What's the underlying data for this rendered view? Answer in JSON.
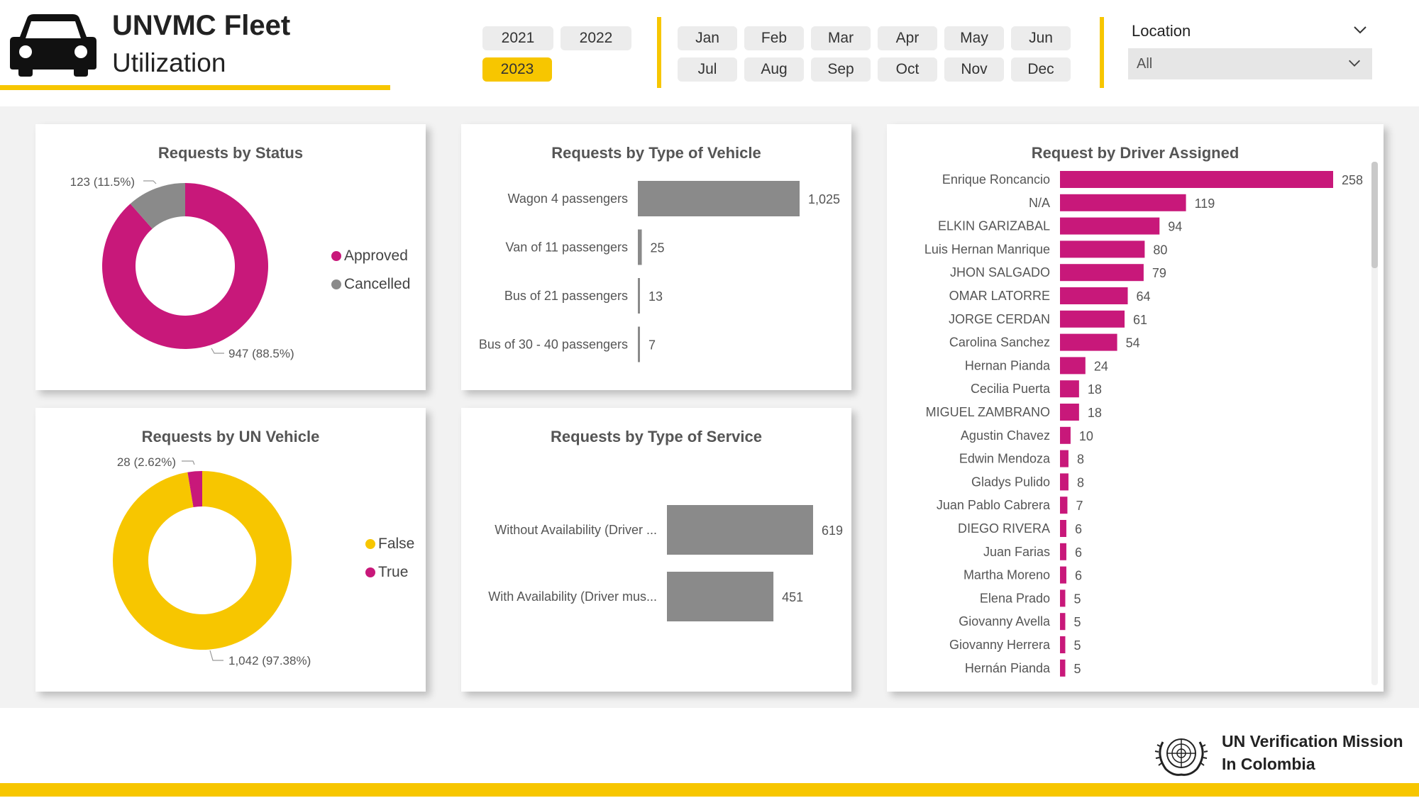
{
  "header": {
    "title_line1": "UNVMC Fleet",
    "title_line2": "Utilization"
  },
  "filters": {
    "years": [
      {
        "label": "2021",
        "selected": false
      },
      {
        "label": "2022",
        "selected": false
      },
      {
        "label": "2023",
        "selected": true
      }
    ],
    "months": [
      "Jan",
      "Feb",
      "Mar",
      "Apr",
      "May",
      "Jun",
      "Jul",
      "Aug",
      "Sep",
      "Oct",
      "Nov",
      "Dec"
    ],
    "location_label": "Location",
    "location_value": "All"
  },
  "colors": {
    "accent": "#f7c600",
    "magenta": "#c8187a",
    "gray": "#8a8a8a"
  },
  "chart_data": [
    {
      "id": "status",
      "type": "pie",
      "title": "Requests by Status",
      "donut": true,
      "slices": [
        {
          "label": "Approved",
          "value": 947,
          "label_text": "947 (88.5%)",
          "color": "#c8187a"
        },
        {
          "label": "Cancelled",
          "value": 123,
          "label_text": "123 (11.5%)",
          "color": "#8a8a8a"
        }
      ],
      "legend": [
        "Approved",
        "Cancelled"
      ],
      "legend_position": "right"
    },
    {
      "id": "vehicle_type",
      "type": "bar",
      "orientation": "horizontal",
      "title": "Requests by Type of Vehicle",
      "categories": [
        "Wagon 4 passengers",
        "Van of 11 passengers",
        "Bus of 21 passengers",
        "Bus of 30 - 40 passengers"
      ],
      "values": [
        1025,
        25,
        13,
        7
      ],
      "value_labels": [
        "1,025",
        "25",
        "13",
        "7"
      ],
      "color": "#8a8a8a"
    },
    {
      "id": "un_vehicle",
      "type": "pie",
      "title": "Requests by UN Vehicle",
      "donut": true,
      "slices": [
        {
          "label": "False",
          "value": 1042,
          "label_text": "1,042 (97.38%)",
          "color": "#f7c600"
        },
        {
          "label": "True",
          "value": 28,
          "label_text": "28 (2.62%)",
          "color": "#c8187a"
        }
      ],
      "legend": [
        "False",
        "True"
      ],
      "legend_position": "right"
    },
    {
      "id": "service_type",
      "type": "bar",
      "orientation": "horizontal",
      "title": "Requests by Type of Service",
      "categories": [
        "Without Availability (Driver ...",
        "With Availability (Driver mus..."
      ],
      "values": [
        619,
        451
      ],
      "value_labels": [
        "619",
        "451"
      ],
      "color": "#8a8a8a"
    },
    {
      "id": "driver",
      "type": "bar",
      "orientation": "horizontal",
      "title": "Request by Driver Assigned",
      "categories": [
        "Enrique Roncancio",
        "N/A",
        "ELKIN GARIZABAL",
        "Luis Hernan Manrique",
        "JHON SALGADO",
        "OMAR LATORRE",
        "JORGE CERDAN",
        "Carolina Sanchez",
        "Hernan Pianda",
        "Cecilia Puerta",
        "MIGUEL ZAMBRANO",
        "Agustin Chavez",
        "Edwin Mendoza",
        "Gladys Pulido",
        "Juan Pablo Cabrera",
        "DIEGO RIVERA",
        "Juan Farias",
        "Martha Moreno",
        "Elena Prado",
        "Giovanny Avella",
        "Giovanny Herrera",
        "Hernán Pianda"
      ],
      "values": [
        258,
        119,
        94,
        80,
        79,
        64,
        61,
        54,
        24,
        18,
        18,
        10,
        8,
        8,
        7,
        6,
        6,
        6,
        5,
        5,
        5,
        5
      ],
      "color": "#c8187a"
    }
  ],
  "footer": {
    "org_line1": "UN Verification Mission",
    "org_line2": "In Colombia"
  }
}
